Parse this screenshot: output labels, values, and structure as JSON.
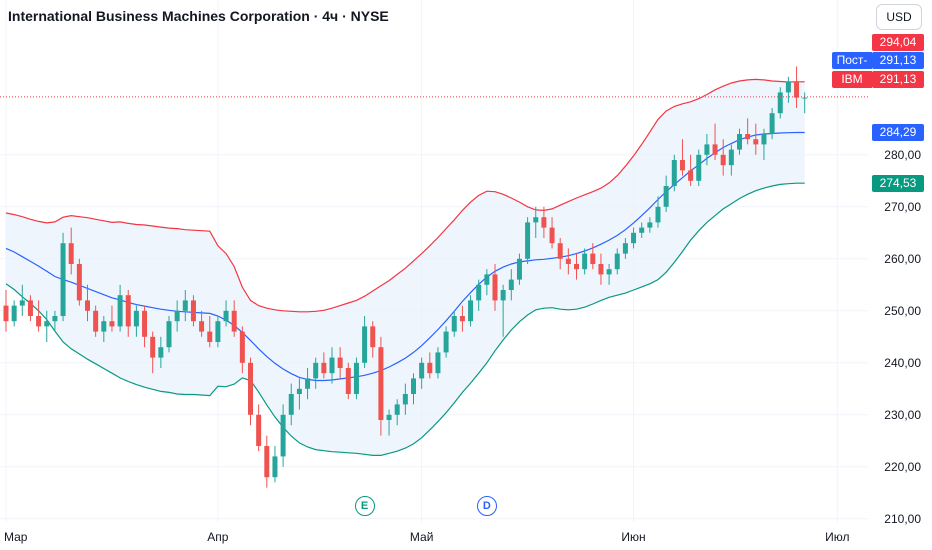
{
  "header": {
    "title": "International Business Machines Corporation · 4ч · NYSE",
    "currency": "USD"
  },
  "colors": {
    "up": "#26a69a",
    "down": "#ef5350",
    "bb_upper": "#f23645",
    "bb_lower": "#089981",
    "bb_basis": "#2962ff",
    "bb_fill": "#e8f2fc",
    "grid": "#f0f3fa",
    "axis_text": "#131722"
  },
  "badges": {
    "upper_band": {
      "label": "294,04",
      "color": "#f23645"
    },
    "post_market": {
      "tag": "Пост-",
      "label": "291,13",
      "color": "#2962ff"
    },
    "last_price": {
      "tag": "IBM",
      "label": "291,13",
      "color": "#f23645"
    },
    "basis": {
      "label": "284,29",
      "color": "#2962ff"
    },
    "lower_band": {
      "label": "274,53",
      "color": "#089981"
    }
  },
  "events": [
    {
      "letter": "E",
      "type": "earnings",
      "color": "#089981",
      "index": 44
    },
    {
      "letter": "D",
      "type": "dividend",
      "color": "#2962ff",
      "index": 59
    }
  ],
  "chart_data": {
    "type": "candlestick",
    "symbol": "IBM",
    "timeframe": "4ч",
    "exchange": "NYSE",
    "indicator": "Bollinger Bands",
    "y_axis": {
      "ticks": [
        {
          "value": 210,
          "label": "210,00"
        },
        {
          "value": 220,
          "label": "220,00"
        },
        {
          "value": 230,
          "label": "230,00"
        },
        {
          "value": 240,
          "label": "240,00"
        },
        {
          "value": 250,
          "label": "250,00"
        },
        {
          "value": 260,
          "label": "260,00"
        },
        {
          "value": 270,
          "label": "270,00"
        },
        {
          "value": 280,
          "label": "280,00"
        }
      ],
      "range": [
        204,
        304
      ]
    },
    "x_axis": {
      "labels": [
        {
          "label": "Мар",
          "index": 0
        },
        {
          "label": "Апр",
          "index": 26
        },
        {
          "label": "Май",
          "index": 51
        },
        {
          "label": "Июн",
          "index": 77
        },
        {
          "label": "Июл",
          "index": 102
        }
      ]
    },
    "ohlc": [
      [
        251,
        254,
        246,
        248
      ],
      [
        248,
        252,
        247,
        251
      ],
      [
        251,
        255,
        249,
        252
      ],
      [
        252,
        253,
        248,
        249
      ],
      [
        249,
        252,
        246,
        247
      ],
      [
        247,
        250,
        244,
        248
      ],
      [
        248,
        250,
        246,
        249
      ],
      [
        249,
        265,
        248,
        263
      ],
      [
        263,
        266,
        257,
        259
      ],
      [
        259,
        260,
        251,
        252
      ],
      [
        252,
        255,
        248,
        250
      ],
      [
        250,
        251,
        245,
        246
      ],
      [
        246,
        249,
        244,
        248
      ],
      [
        248,
        251,
        246,
        247
      ],
      [
        247,
        255,
        246,
        253
      ],
      [
        253,
        254,
        245,
        247
      ],
      [
        247,
        251,
        245,
        250
      ],
      [
        250,
        251,
        243,
        245
      ],
      [
        245,
        246,
        238,
        241
      ],
      [
        241,
        245,
        239,
        243
      ],
      [
        243,
        249,
        242,
        248
      ],
      [
        248,
        252,
        246,
        250
      ],
      [
        250,
        254,
        248,
        252
      ],
      [
        252,
        253,
        247,
        248
      ],
      [
        248,
        250,
        245,
        246
      ],
      [
        246,
        249,
        243,
        244
      ],
      [
        244,
        249,
        243,
        248
      ],
      [
        248,
        252,
        247,
        250
      ],
      [
        250,
        252,
        245,
        246
      ],
      [
        246,
        247,
        238,
        240
      ],
      [
        240,
        241,
        228,
        230
      ],
      [
        230,
        232,
        223,
        224
      ],
      [
        224,
        226,
        216,
        218
      ],
      [
        218,
        224,
        217,
        222
      ],
      [
        222,
        232,
        220,
        230
      ],
      [
        230,
        236,
        228,
        234
      ],
      [
        234,
        237,
        231,
        235
      ],
      [
        235,
        239,
        233,
        237
      ],
      [
        237,
        241,
        235,
        240
      ],
      [
        240,
        242,
        237,
        238
      ],
      [
        238,
        243,
        236,
        241
      ],
      [
        241,
        243,
        237,
        239
      ],
      [
        239,
        240,
        233,
        234
      ],
      [
        234,
        241,
        233,
        240
      ],
      [
        240,
        249,
        239,
        247
      ],
      [
        247,
        248,
        241,
        243
      ],
      [
        243,
        245,
        226,
        229
      ],
      [
        229,
        231,
        226,
        230
      ],
      [
        230,
        233,
        228,
        232
      ],
      [
        232,
        236,
        230,
        234
      ],
      [
        234,
        238,
        232,
        237
      ],
      [
        237,
        241,
        235,
        240
      ],
      [
        240,
        242,
        237,
        238
      ],
      [
        238,
        243,
        237,
        242
      ],
      [
        242,
        247,
        241,
        246
      ],
      [
        246,
        250,
        245,
        249
      ],
      [
        249,
        251,
        246,
        248
      ],
      [
        248,
        253,
        247,
        252
      ],
      [
        252,
        256,
        250,
        255
      ],
      [
        255,
        258,
        253,
        257
      ],
      [
        257,
        259,
        250,
        252
      ],
      [
        252,
        255,
        245,
        254
      ],
      [
        254,
        258,
        252,
        256
      ],
      [
        256,
        261,
        255,
        260
      ],
      [
        260,
        268,
        259,
        267
      ],
      [
        267,
        270,
        264,
        268
      ],
      [
        268,
        270,
        264,
        266
      ],
      [
        266,
        268,
        262,
        263
      ],
      [
        263,
        264,
        258,
        260
      ],
      [
        260,
        262,
        257,
        259
      ],
      [
        259,
        261,
        256,
        258
      ],
      [
        258,
        262,
        257,
        261
      ],
      [
        261,
        263,
        258,
        259
      ],
      [
        259,
        261,
        255,
        257
      ],
      [
        257,
        259,
        255,
        258
      ],
      [
        258,
        262,
        257,
        261
      ],
      [
        261,
        264,
        260,
        263
      ],
      [
        263,
        266,
        262,
        265
      ],
      [
        265,
        267,
        264,
        266
      ],
      [
        266,
        268,
        265,
        267
      ],
      [
        267,
        272,
        266,
        270
      ],
      [
        270,
        276,
        269,
        274
      ],
      [
        274,
        280,
        273,
        279
      ],
      [
        279,
        283,
        276,
        277
      ],
      [
        277,
        280,
        274,
        275
      ],
      [
        275,
        281,
        274,
        280
      ],
      [
        280,
        284,
        278,
        282
      ],
      [
        282,
        286,
        279,
        280
      ],
      [
        280,
        283,
        276,
        278
      ],
      [
        278,
        282,
        276,
        281
      ],
      [
        281,
        285,
        280,
        284
      ],
      [
        284,
        287,
        282,
        283
      ],
      [
        283,
        286,
        280,
        282
      ],
      [
        282,
        285,
        279,
        284
      ],
      [
        284,
        289,
        283,
        288
      ],
      [
        288,
        293,
        287,
        292
      ],
      [
        292,
        295,
        290,
        294
      ],
      [
        294,
        297,
        289,
        291
      ],
      [
        291,
        292,
        288,
        291
      ]
    ],
    "bb_upper": [
      268.8,
      268.5,
      268.1,
      267.6,
      267.2,
      266.9,
      267.1,
      268.0,
      268.3,
      268.1,
      267.9,
      267.6,
      267.3,
      267.0,
      267.1,
      266.8,
      266.6,
      266.5,
      266.3,
      266.1,
      265.9,
      265.8,
      265.6,
      265.5,
      265.4,
      265.3,
      262.5,
      261.0,
      258.5,
      254.5,
      252.0,
      251.0,
      250.5,
      250.2,
      250.0,
      249.9,
      249.8,
      249.8,
      249.9,
      250.1,
      250.5,
      251.0,
      251.5,
      252.0,
      252.8,
      253.8,
      254.8,
      255.8,
      257.0,
      258.2,
      259.6,
      261.0,
      262.5,
      264.1,
      265.8,
      267.5,
      269.3,
      270.9,
      272.2,
      273.0,
      272.9,
      272.4,
      271.7,
      270.9,
      270.0,
      269.4,
      269.3,
      269.6,
      270.3,
      271.0,
      271.7,
      272.3,
      272.9,
      273.6,
      274.6,
      276.0,
      277.8,
      279.8,
      282.0,
      284.4,
      286.8,
      288.4,
      289.3,
      289.8,
      290.2,
      290.8,
      291.6,
      292.5,
      293.2,
      293.8,
      294.2,
      294.4,
      294.5,
      294.4,
      294.2,
      294.1,
      294.0,
      294.04,
      294.04
    ],
    "bb_basis": [
      262.0,
      261.3,
      260.4,
      259.5,
      258.6,
      257.6,
      256.6,
      256.0,
      255.5,
      254.9,
      254.3,
      253.7,
      253.1,
      252.5,
      252.1,
      251.6,
      251.2,
      250.9,
      250.6,
      250.3,
      250.1,
      249.9,
      249.8,
      249.7,
      249.6,
      249.5,
      249.0,
      248.2,
      247.2,
      245.8,
      244.3,
      242.7,
      241.2,
      239.9,
      238.8,
      237.9,
      237.2,
      236.8,
      236.6,
      236.6,
      236.7,
      236.9,
      237.1,
      237.3,
      237.6,
      238.0,
      238.5,
      239.2,
      240.0,
      240.9,
      242.0,
      243.3,
      244.8,
      246.4,
      248.1,
      249.9,
      251.8,
      253.5,
      255.1,
      256.5,
      257.6,
      258.4,
      259.0,
      259.4,
      259.6,
      259.8,
      259.9,
      260.1,
      260.3,
      260.6,
      261.0,
      261.5,
      262.1,
      262.8,
      263.6,
      264.5,
      265.6,
      266.9,
      268.3,
      269.8,
      271.4,
      272.9,
      274.3,
      275.6,
      276.9,
      278.1,
      279.3,
      280.4,
      281.4,
      282.2,
      282.9,
      283.4,
      283.8,
      284.0,
      284.1,
      284.2,
      284.25,
      284.29,
      284.29
    ],
    "bb_lower": [
      255.2,
      254.1,
      252.7,
      251.4,
      250.0,
      248.3,
      246.1,
      244.0,
      242.7,
      241.7,
      240.7,
      239.8,
      238.9,
      238.0,
      237.1,
      236.4,
      235.8,
      235.3,
      234.9,
      234.5,
      234.3,
      234.0,
      233.9,
      233.9,
      233.8,
      233.7,
      235.5,
      235.4,
      235.9,
      237.1,
      236.6,
      234.4,
      231.9,
      229.6,
      227.6,
      225.9,
      224.6,
      223.8,
      223.3,
      223.1,
      222.9,
      222.8,
      222.7,
      222.6,
      222.4,
      222.2,
      222.2,
      222.6,
      223.0,
      223.6,
      224.4,
      225.6,
      227.1,
      228.7,
      230.4,
      232.3,
      234.3,
      236.1,
      238.0,
      240.0,
      242.3,
      244.4,
      246.3,
      247.9,
      249.2,
      250.2,
      250.5,
      250.6,
      250.3,
      250.2,
      250.3,
      250.7,
      251.3,
      252.0,
      252.6,
      253.0,
      253.4,
      254.0,
      254.6,
      255.2,
      256.0,
      257.4,
      259.3,
      261.4,
      263.6,
      265.4,
      267.0,
      268.3,
      269.6,
      270.6,
      271.6,
      272.4,
      273.1,
      273.6,
      274.0,
      274.3,
      274.45,
      274.53,
      274.53
    ],
    "last_price": 291.13,
    "post_market_price": 291.13
  }
}
